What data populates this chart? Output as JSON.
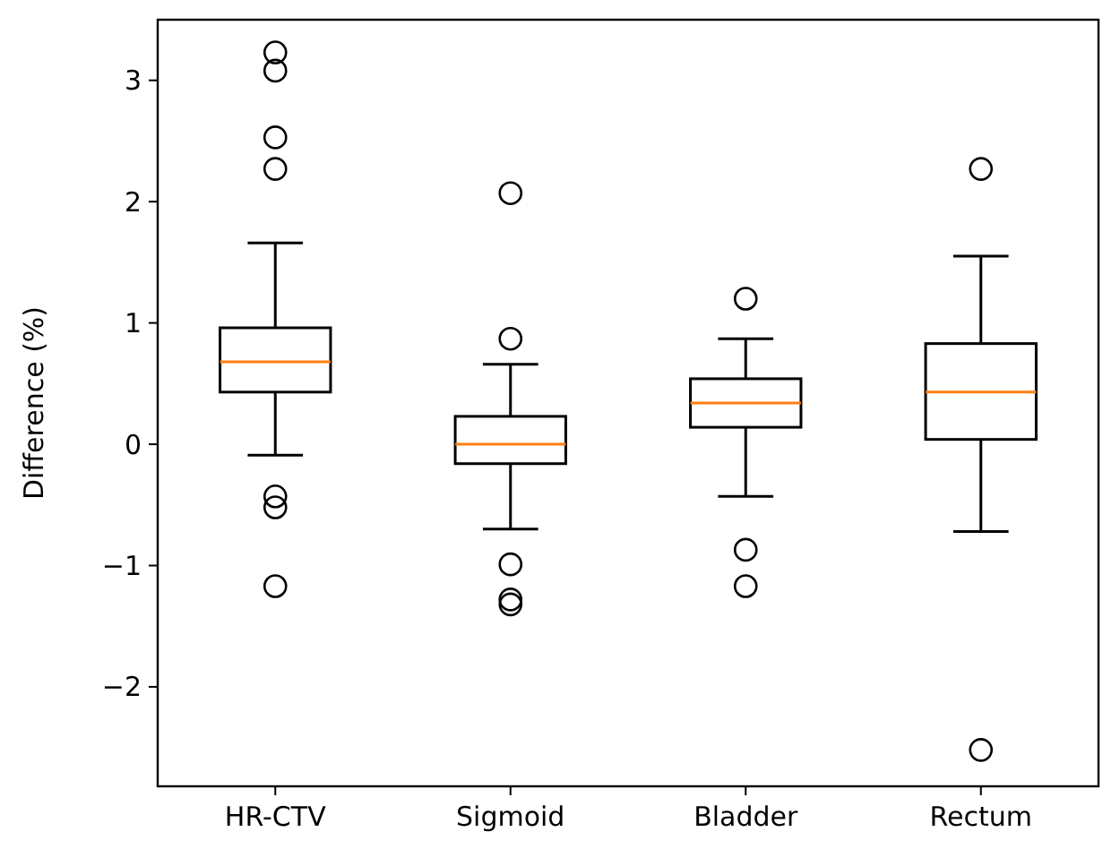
{
  "chart_data": {
    "type": "box",
    "ylabel": "Difference (%)",
    "categories": [
      "HR-CTV",
      "Sigmoid",
      "Bladder",
      "Rectum"
    ],
    "boxes": [
      {
        "low": -0.09,
        "q1": 0.43,
        "median": 0.68,
        "q3": 0.96,
        "high": 1.66,
        "outliers": [
          3.23,
          3.08,
          2.53,
          2.27,
          -0.43,
          -0.52,
          -1.17
        ]
      },
      {
        "low": -0.7,
        "q1": -0.16,
        "median": 0.0,
        "q3": 0.23,
        "high": 0.66,
        "outliers": [
          2.07,
          0.87,
          -0.99,
          -1.28,
          -1.32
        ]
      },
      {
        "low": -0.43,
        "q1": 0.14,
        "median": 0.34,
        "q3": 0.54,
        "high": 0.87,
        "outliers": [
          1.2,
          -0.87,
          -1.17
        ]
      },
      {
        "low": -0.72,
        "q1": 0.04,
        "median": 0.43,
        "q3": 0.83,
        "high": 1.55,
        "outliers": [
          2.27,
          -2.52
        ]
      }
    ],
    "color": "#000000",
    "ylim": [
      -2.82,
      3.5
    ],
    "yticks": [
      {
        "value": -2,
        "label": "−2"
      },
      {
        "value": -1,
        "label": "−1"
      },
      0,
      1,
      2,
      3
    ],
    "grid": false
  }
}
